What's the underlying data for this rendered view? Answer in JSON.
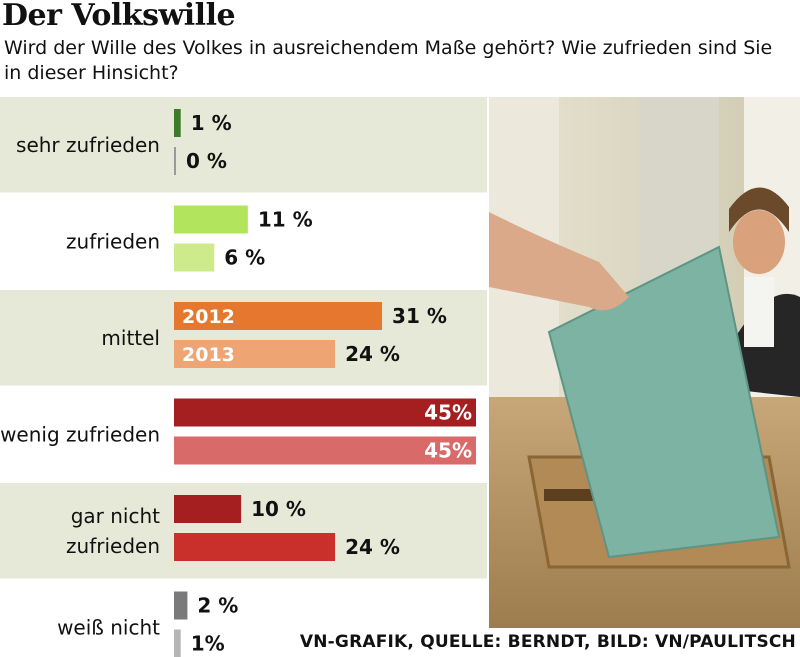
{
  "chart_data": {
    "type": "bar",
    "title": "Der Volkswille",
    "subtitle": "Wird der Wille des Volkes in ausreichendem Maße gehört? Wie zufrieden sind Sie in dieser Hinsicht?",
    "categories": [
      {
        "label": [
          "sehr zufrieden"
        ],
        "values": [
          1,
          0
        ],
        "value_labels": [
          "1 %",
          "0 %"
        ],
        "colors": [
          "#3d7a2a",
          "#9a9a9a"
        ]
      },
      {
        "label": [
          "zufrieden"
        ],
        "values": [
          11,
          6
        ],
        "value_labels": [
          "11 %",
          "6 %"
        ],
        "colors": [
          "#b3e45e",
          "#cdeb8b"
        ]
      },
      {
        "label": [
          "mittel"
        ],
        "values": [
          31,
          24
        ],
        "value_labels": [
          "31 %",
          "24 %"
        ],
        "colors": [
          "#e5782e",
          "#eea473"
        ]
      },
      {
        "label": [
          "wenig zufrieden"
        ],
        "values": [
          45,
          45
        ],
        "value_labels": [
          "45%",
          "45%"
        ],
        "colors": [
          "#a51f20",
          "#d86b69"
        ]
      },
      {
        "label": [
          "gar nicht",
          "zufrieden"
        ],
        "values": [
          10,
          24
        ],
        "value_labels": [
          "10 %",
          "24 %"
        ],
        "colors": [
          "#a51f20",
          "#c9302b"
        ]
      },
      {
        "label": [
          "weiß nicht"
        ],
        "values": [
          2,
          1
        ],
        "value_labels": [
          "2 %",
          "1%"
        ],
        "colors": [
          "#7a7a7a",
          "#b5b5b5"
        ]
      }
    ],
    "series": [
      {
        "name": "2012",
        "values": [
          1,
          11,
          31,
          45,
          10,
          2
        ]
      },
      {
        "name": "2013",
        "values": [
          0,
          6,
          24,
          45,
          24,
          1
        ]
      }
    ],
    "xlim": [
      0,
      45
    ],
    "legend": "inside bars (mittel row)",
    "grid": false
  },
  "source": "VN-GRAFIK, QUELLE: BERNDT, BILD: VN/PAULITSCH"
}
